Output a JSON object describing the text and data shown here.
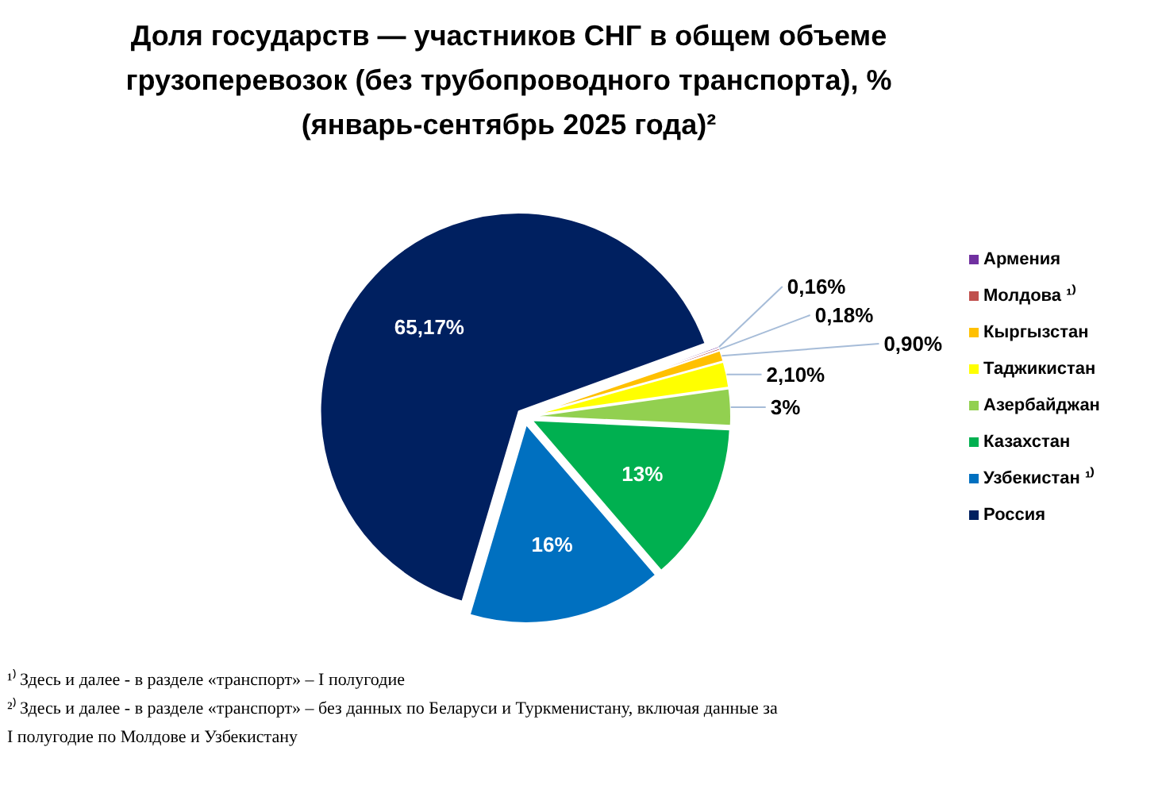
{
  "chart_data": {
    "type": "pie",
    "title": "Доля государств — участников СНГ в общем объеме\nгрузоперевозок (без трубопроводного транспорта), %\n(январь-сентябрь 2025 года)²",
    "categories": [
      "Армения",
      "Молдова ¹⁾",
      "Кыргызстан",
      "Таджикистан",
      "Азербайджан",
      "Казахстан",
      "Узбекистан ¹⁾",
      "Россия"
    ],
    "values": [
      0.16,
      0.18,
      0.9,
      2.1,
      3,
      13,
      16,
      65.17
    ],
    "value_labels": [
      "0,16%",
      "0,18%",
      "0,90%",
      "2,10%",
      "3%",
      "13%",
      "16%",
      "65,17%"
    ],
    "colors": [
      "#7030a0",
      "#c0504d",
      "#ffc000",
      "#ffff00",
      "#92d050",
      "#00b050",
      "#0070c0",
      "#002060"
    ],
    "legend": "right",
    "annotations": [
      "¹⁾ Здесь и далее - в разделе «транспорт» – I полугодие",
      "²⁾ Здесь и далее - в разделе «транспорт» – без данных по Беларуси и Туркменистану, включая данные за\nI полугодие по Молдове и Узбекистану"
    ]
  }
}
